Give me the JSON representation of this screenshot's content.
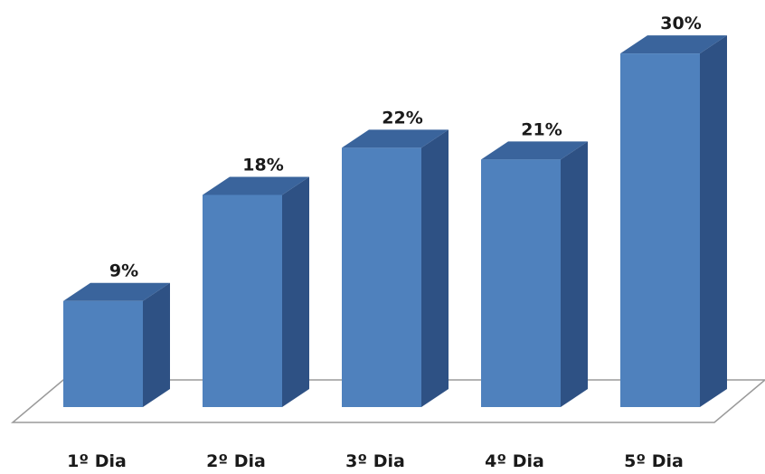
{
  "chart_data": {
    "type": "bar",
    "style": "3d-column",
    "categories": [
      "1º Dia",
      "2º Dia",
      "3º Dia",
      "4º Dia",
      "5º Dia"
    ],
    "values": [
      9,
      18,
      22,
      21,
      30
    ],
    "value_labels": [
      "9%",
      "18%",
      "22%",
      "21%",
      "30%"
    ],
    "unit": "%",
    "title": "",
    "xlabel": "",
    "ylabel": "",
    "ylim": [
      0,
      30
    ],
    "grid": false,
    "legend": "none",
    "colors": {
      "front": "#4f81bd",
      "top": "#3a649c",
      "side": "#2e5184",
      "floor_stroke": "#9a9a9a",
      "text": "#1a1a1a"
    }
  }
}
